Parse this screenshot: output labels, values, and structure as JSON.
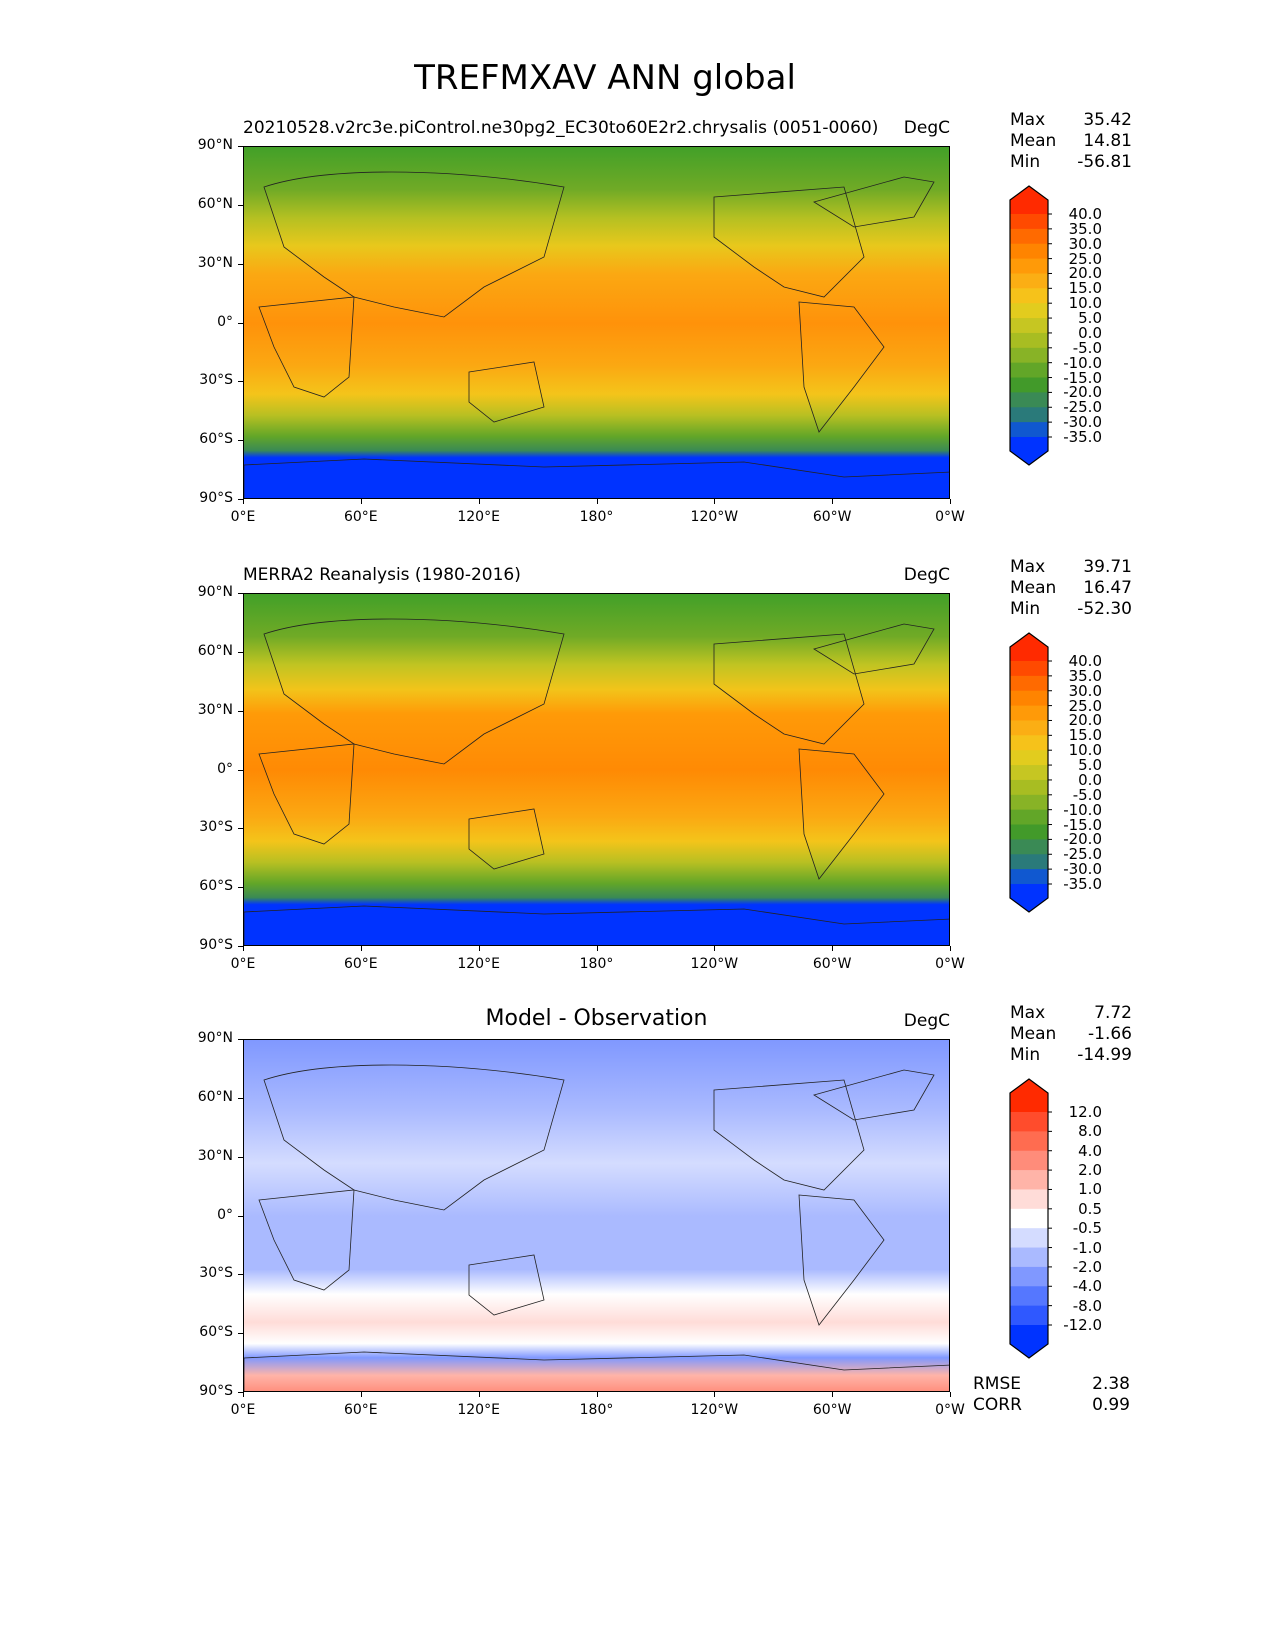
{
  "title": "TREFMXAV ANN global",
  "y_ticks": [
    "90°N",
    "60°N",
    "30°N",
    "0°",
    "30°S",
    "60°S",
    "90°S"
  ],
  "x_ticks": [
    "0°E",
    "60°E",
    "120°E",
    "180°",
    "120°W",
    "60°W",
    "0°W"
  ],
  "panels": [
    {
      "title": "20210528.v2rc3e.piControl.ne30pg2_EC30to60E2r2.chrysalis (0051-0060)",
      "title_style": "left",
      "units": "DegC",
      "stats": [
        {
          "label": "Max",
          "value": "35.42"
        },
        {
          "label": "Mean",
          "value": "14.81"
        },
        {
          "label": "Min",
          "value": "-56.81"
        }
      ],
      "colorbar": "temp"
    },
    {
      "title": "MERRA2 Reanalysis (1980-2016)",
      "title_style": "left",
      "units": "DegC",
      "stats": [
        {
          "label": "Max",
          "value": "39.71"
        },
        {
          "label": "Mean",
          "value": "16.47"
        },
        {
          "label": "Min",
          "value": "-52.30"
        }
      ],
      "colorbar": "temp"
    },
    {
      "title": "Model - Observation",
      "title_style": "center",
      "units": "DegC",
      "stats": [
        {
          "label": "Max",
          "value": "7.72"
        },
        {
          "label": "Mean",
          "value": "-1.66"
        },
        {
          "label": "Min",
          "value": "-14.99"
        }
      ],
      "colorbar": "diff",
      "metrics": [
        {
          "label": "RMSE",
          "value": "2.38"
        },
        {
          "label": "CORR",
          "value": "0.99"
        }
      ]
    }
  ],
  "colorbars": {
    "temp": {
      "labels": [
        "40.0",
        "35.0",
        "30.0",
        "25.0",
        "20.0",
        "15.0",
        "10.0",
        "5.0",
        "0.0",
        "-5.0",
        "-10.0",
        "-15.0",
        "-20.0",
        "-25.0",
        "-30.0",
        "-35.0"
      ],
      "colors": [
        "#ff2a00",
        "#ff4a00",
        "#ff6a00",
        "#ff8400",
        "#ff9a08",
        "#fbae14",
        "#f6c21a",
        "#e2cc1e",
        "#c6c622",
        "#a8bd22",
        "#88b326",
        "#62a628",
        "#429a2a",
        "#3a8a55",
        "#2a7a7a",
        "#1058d0",
        "#0033ff"
      ]
    },
    "diff": {
      "labels": [
        "12.0",
        "8.0",
        "4.0",
        "2.0",
        "1.0",
        "0.5",
        "-0.5",
        "-1.0",
        "-2.0",
        "-4.0",
        "-8.0",
        "-12.0"
      ],
      "colors": [
        "#ff2a00",
        "#ff4c2c",
        "#ff6c50",
        "#ff8c7a",
        "#ffb4a8",
        "#ffdcd8",
        "#ffffff",
        "#d4dcff",
        "#aabaff",
        "#8098ff",
        "#5577ff",
        "#2f58ff",
        "#0033ff"
      ]
    }
  }
}
